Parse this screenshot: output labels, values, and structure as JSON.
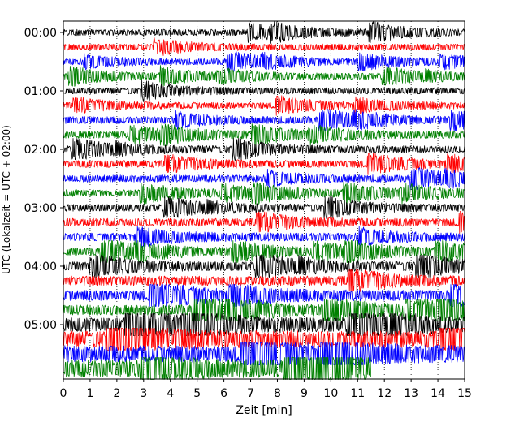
{
  "chart_data": {
    "type": "line",
    "title": "",
    "xlabel": "Zeit  [min]",
    "ylabel": "UTC (Lokalzeit = UTC + 02:00)",
    "xlim": [
      0,
      15
    ],
    "xticks": [
      "0",
      "1",
      "2",
      "3",
      "4",
      "5",
      "6",
      "7",
      "8",
      "9",
      "10",
      "11",
      "12",
      "13",
      "14",
      "15"
    ],
    "yticks": [
      "00:00",
      "01:00",
      "02:00",
      "03:00",
      "04:00",
      "05:00"
    ],
    "grid": "vertical dotted",
    "colors": [
      "#000000",
      "#ff0000",
      "#0000ff",
      "#008000"
    ],
    "traces": [
      {
        "start": "00:00",
        "end_min": 15,
        "color": "#000000",
        "amplitude": 0.35
      },
      {
        "start": "00:15",
        "end_min": 15,
        "color": "#ff0000",
        "amplitude": 0.35
      },
      {
        "start": "00:30",
        "end_min": 15,
        "color": "#0000ff",
        "amplitude": 0.35
      },
      {
        "start": "00:45",
        "end_min": 15,
        "color": "#008000",
        "amplitude": 0.35
      },
      {
        "start": "01:00",
        "end_min": 15,
        "color": "#000000",
        "amplitude": 0.35
      },
      {
        "start": "01:15",
        "end_min": 15,
        "color": "#ff0000",
        "amplitude": 0.35
      },
      {
        "start": "01:30",
        "end_min": 15,
        "color": "#0000ff",
        "amplitude": 0.4
      },
      {
        "start": "01:45",
        "end_min": 15,
        "color": "#008000",
        "amplitude": 0.4
      },
      {
        "start": "02:00",
        "end_min": 15,
        "color": "#000000",
        "amplitude": 0.4
      },
      {
        "start": "02:15",
        "end_min": 15,
        "color": "#ff0000",
        "amplitude": 0.4
      },
      {
        "start": "02:30",
        "end_min": 15,
        "color": "#0000ff",
        "amplitude": 0.4
      },
      {
        "start": "02:45",
        "end_min": 15,
        "color": "#008000",
        "amplitude": 0.4
      },
      {
        "start": "03:00",
        "end_min": 15,
        "color": "#000000",
        "amplitude": 0.4
      },
      {
        "start": "03:15",
        "end_min": 15,
        "color": "#ff0000",
        "amplitude": 0.45
      },
      {
        "start": "03:30",
        "end_min": 15,
        "color": "#0000ff",
        "amplitude": 0.45
      },
      {
        "start": "03:45",
        "end_min": 15,
        "color": "#008000",
        "amplitude": 0.45
      },
      {
        "start": "04:00",
        "end_min": 15,
        "color": "#000000",
        "amplitude": 0.5
      },
      {
        "start": "04:15",
        "end_min": 15,
        "color": "#ff0000",
        "amplitude": 0.55
      },
      {
        "start": "04:30",
        "end_min": 15,
        "color": "#0000ff",
        "amplitude": 0.6
      },
      {
        "start": "04:45",
        "end_min": 15,
        "color": "#008000",
        "amplitude": 0.6
      },
      {
        "start": "05:00",
        "end_min": 15,
        "color": "#000000",
        "amplitude": 0.8
      },
      {
        "start": "05:15",
        "end_min": 15,
        "color": "#ff0000",
        "amplitude": 0.95
      },
      {
        "start": "05:30",
        "end_min": 15,
        "color": "#0000ff",
        "amplitude": 0.95
      },
      {
        "start": "05:45",
        "end_min": 11.5,
        "color": "#008000",
        "amplitude": 1.0
      }
    ]
  }
}
